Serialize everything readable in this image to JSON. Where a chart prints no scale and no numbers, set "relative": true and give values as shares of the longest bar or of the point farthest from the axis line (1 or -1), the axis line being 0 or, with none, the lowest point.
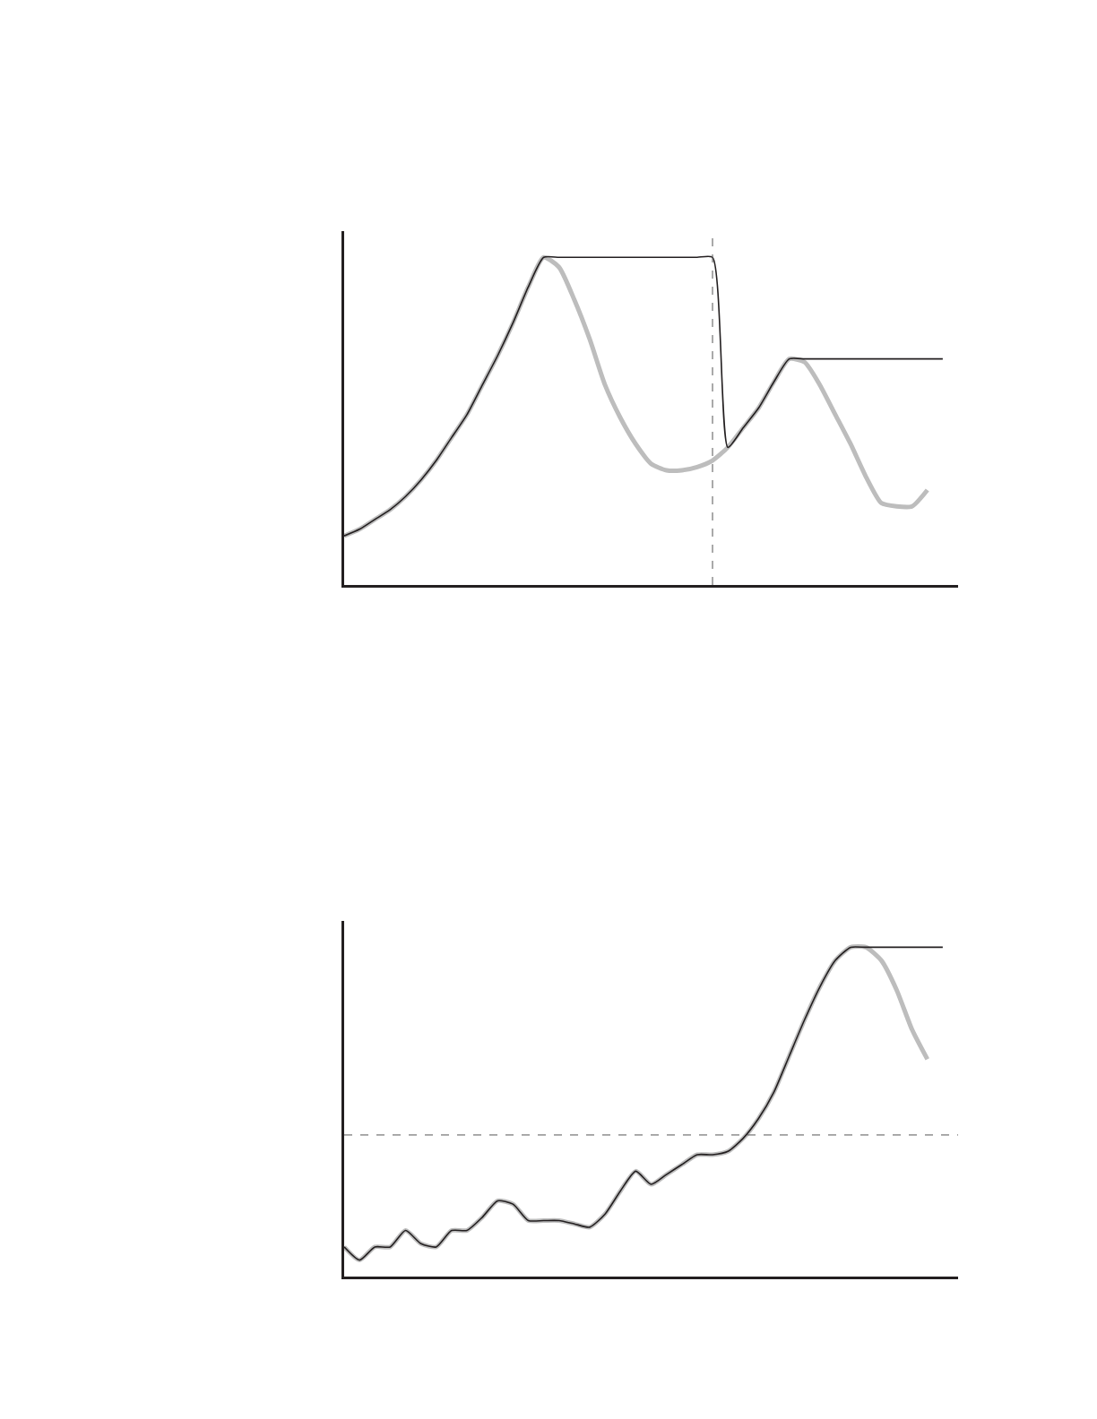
{
  "chart_data": [
    {
      "type": "line",
      "relative": true,
      "marker": "none",
      "line_style": "solid",
      "categories": [
        null,
        null,
        null,
        null,
        null,
        null,
        null,
        null,
        null,
        null,
        null,
        null,
        null,
        null,
        null,
        null,
        null,
        null,
        null,
        null,
        null,
        null,
        null,
        null,
        null,
        null,
        null,
        null,
        null,
        null,
        null,
        null,
        null,
        null,
        null,
        null,
        null,
        null,
        null,
        null,
        null
      ],
      "series": [
        {
          "color": "#bdbdbd",
          "values": [
            0.15,
            0.17,
            0.2,
            0.23,
            0.27,
            0.32,
            0.38,
            0.45,
            0.52,
            0.61,
            0.7,
            0.8,
            0.91,
            1.0,
            0.97,
            0.87,
            0.75,
            0.61,
            0.51,
            0.43,
            0.37,
            0.35,
            0.35,
            0.36,
            0.38,
            0.42,
            0.48,
            0.54,
            0.62,
            0.69,
            0.68,
            0.61,
            0.52,
            0.43,
            0.33,
            0.25,
            0.24,
            0.24,
            0.29,
            null,
            null
          ]
        },
        {
          "color": "#231f20",
          "values": [
            0.15,
            0.17,
            0.2,
            0.23,
            0.27,
            0.32,
            0.38,
            0.45,
            0.52,
            0.61,
            0.7,
            0.8,
            0.91,
            1.0,
            1.0,
            1.0,
            1.0,
            1.0,
            1.0,
            1.0,
            1.0,
            1.0,
            1.0,
            1.0,
            1.0,
            0.42,
            0.48,
            0.54,
            0.62,
            0.69,
            0.69,
            0.69,
            0.69,
            0.69,
            0.69,
            0.69,
            0.69,
            0.69,
            0.69,
            0.69,
            null
          ]
        }
      ]
    },
    {
      "type": "line",
      "relative": true,
      "marker": "none",
      "line_style": "solid",
      "categories": [
        null,
        null,
        null,
        null,
        null,
        null,
        null,
        null,
        null,
        null,
        null,
        null,
        null,
        null,
        null,
        null,
        null,
        null,
        null,
        null,
        null,
        null,
        null,
        null,
        null,
        null,
        null,
        null,
        null,
        null,
        null,
        null,
        null,
        null,
        null,
        null,
        null,
        null,
        null,
        null,
        null
      ],
      "series": [
        {
          "color": "#bdbdbd",
          "values": [
            0.09,
            0.05,
            0.09,
            0.09,
            0.14,
            0.1,
            0.09,
            0.14,
            0.14,
            0.18,
            0.23,
            0.22,
            0.17,
            0.17,
            0.17,
            0.16,
            0.15,
            0.19,
            0.26,
            0.32,
            0.28,
            0.31,
            0.34,
            0.37,
            0.37,
            0.38,
            0.42,
            0.48,
            0.56,
            0.67,
            0.78,
            0.88,
            0.96,
            1.0,
            1.0,
            0.96,
            0.87,
            0.75,
            0.66,
            null,
            null
          ]
        },
        {
          "color": "#231f20",
          "values": [
            0.09,
            0.05,
            0.09,
            0.09,
            0.14,
            0.1,
            0.09,
            0.14,
            0.14,
            0.18,
            0.23,
            0.22,
            0.17,
            0.17,
            0.17,
            0.16,
            0.15,
            0.19,
            0.26,
            0.32,
            0.28,
            0.31,
            0.34,
            0.37,
            0.37,
            0.38,
            0.42,
            0.48,
            0.56,
            0.67,
            0.78,
            0.88,
            0.96,
            1.0,
            1.0,
            1.0,
            1.0,
            1.0,
            1.0,
            1.0,
            null
          ]
        }
      ],
      "ref_lines": [
        {
          "axis": "y",
          "value": 0.43,
          "line_style": "dashed",
          "color": "#555555"
        }
      ]
    }
  ]
}
